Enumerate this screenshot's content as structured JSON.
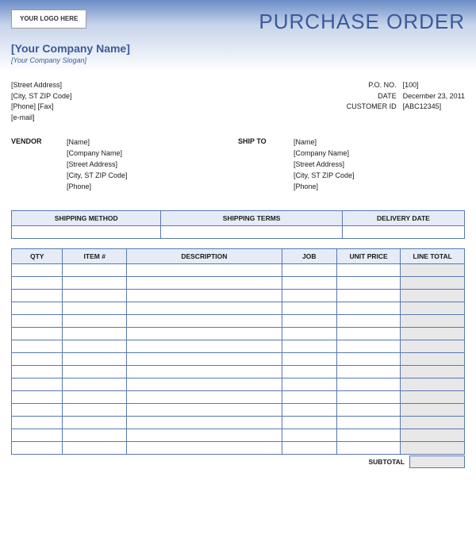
{
  "logo_placeholder": "YOUR LOGO HERE",
  "doc_title": "PURCHASE ORDER",
  "company": {
    "name": "[Your Company Name]",
    "slogan": "[Your Company Slogan]",
    "address": "[Street Address]",
    "city": "[City, ST  ZIP Code]",
    "phone_fax": "[Phone]  [Fax]",
    "email": "[e-mail]"
  },
  "order_info": {
    "po_no_label": "P.O. NO.",
    "po_no_value": "[100]",
    "date_label": "DATE",
    "date_value": "December 23, 2011",
    "customer_id_label": "CUSTOMER ID",
    "customer_id_value": "[ABC12345]"
  },
  "vendor": {
    "label": "VENDOR",
    "name": "[Name]",
    "company": "[Company Name]",
    "address": "[Street Address]",
    "city": "[City, ST  ZIP Code]",
    "phone": "[Phone]"
  },
  "shipto": {
    "label": "SHIP TO",
    "name": "[Name]",
    "company": "[Company Name]",
    "address": "[Street Address]",
    "city": "[City, ST  ZIP Code]",
    "phone": "[Phone]"
  },
  "shipping_headers": {
    "method": "SHIPPING METHOD",
    "terms": "SHIPPING TERMS",
    "delivery": "DELIVERY DATE"
  },
  "item_headers": {
    "qty": "QTY",
    "item": "ITEM #",
    "desc": "DESCRIPTION",
    "job": "JOB",
    "price": "UNIT PRICE",
    "total": "LINE TOTAL"
  },
  "item_row_count": 15,
  "subtotal_label": "SUBTOTAL",
  "colors": {
    "accent": "#3b5a9a",
    "border": "#5a78b0",
    "header_bg": "#e5ecf7",
    "shaded_col": "#e8e8e8",
    "gradient_top": "#6b8cc7"
  }
}
